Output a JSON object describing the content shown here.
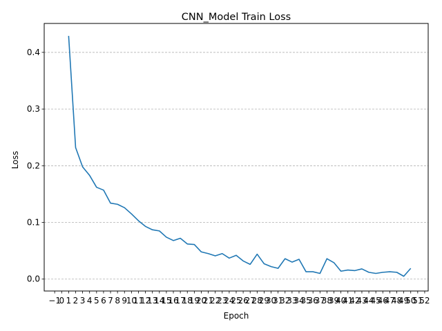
{
  "chart_data": {
    "type": "line",
    "title": "CNN_Model Train Loss",
    "xlabel": "Epoch",
    "ylabel": "Loss",
    "xlim": [
      -2.5,
      52.5
    ],
    "ylim": [
      -0.021,
      0.451
    ],
    "x_ticks": [
      -1,
      0,
      1,
      2,
      3,
      4,
      5,
      6,
      7,
      8,
      9,
      10,
      11,
      12,
      13,
      14,
      15,
      16,
      17,
      18,
      19,
      20,
      21,
      22,
      23,
      24,
      25,
      26,
      27,
      28,
      29,
      30,
      31,
      32,
      33,
      34,
      35,
      36,
      37,
      38,
      39,
      40,
      41,
      42,
      43,
      44,
      45,
      46,
      47,
      48,
      49,
      50,
      51,
      52
    ],
    "x_tick_labels": [
      "−1",
      "0",
      "1",
      "2",
      "3",
      "4",
      "5",
      "6",
      "7",
      "8",
      "9",
      "10",
      "11",
      "12",
      "13",
      "14",
      "15",
      "16",
      "17",
      "18",
      "19",
      "20",
      "21",
      "22",
      "23",
      "24",
      "25",
      "26",
      "27",
      "28",
      "29",
      "30",
      "31",
      "32",
      "33",
      "34",
      "35",
      "36",
      "37",
      "38",
      "39",
      "40",
      "41",
      "42",
      "43",
      "44",
      "45",
      "46",
      "47",
      "48",
      "49",
      "50",
      "51",
      "52"
    ],
    "y_ticks": [
      0.0,
      0.1,
      0.2,
      0.3,
      0.4
    ],
    "y_tick_labels": [
      "0.0",
      "0.1",
      "0.2",
      "0.3",
      "0.4"
    ],
    "grid": "y-axis dashed",
    "series": [
      {
        "color": "#1f77b4",
        "x": [
          1,
          2,
          3,
          4,
          5,
          6,
          7,
          8,
          9,
          10,
          11,
          12,
          13,
          14,
          15,
          16,
          17,
          18,
          19,
          20,
          21,
          22,
          23,
          24,
          25,
          26,
          27,
          28,
          29,
          30,
          31,
          32,
          33,
          34,
          35,
          36,
          37,
          38,
          39,
          40,
          41,
          42,
          43,
          44,
          45,
          46,
          47,
          48,
          49,
          50
        ],
        "y": [
          0.429,
          0.232,
          0.198,
          0.183,
          0.162,
          0.157,
          0.134,
          0.132,
          0.126,
          0.115,
          0.103,
          0.093,
          0.087,
          0.085,
          0.074,
          0.068,
          0.072,
          0.062,
          0.061,
          0.048,
          0.045,
          0.041,
          0.045,
          0.037,
          0.042,
          0.032,
          0.026,
          0.044,
          0.027,
          0.022,
          0.019,
          0.036,
          0.03,
          0.035,
          0.013,
          0.013,
          0.01,
          0.036,
          0.029,
          0.014,
          0.016,
          0.015,
          0.018,
          0.012,
          0.01,
          0.012,
          0.013,
          0.012,
          0.005,
          0.019
        ]
      }
    ]
  }
}
